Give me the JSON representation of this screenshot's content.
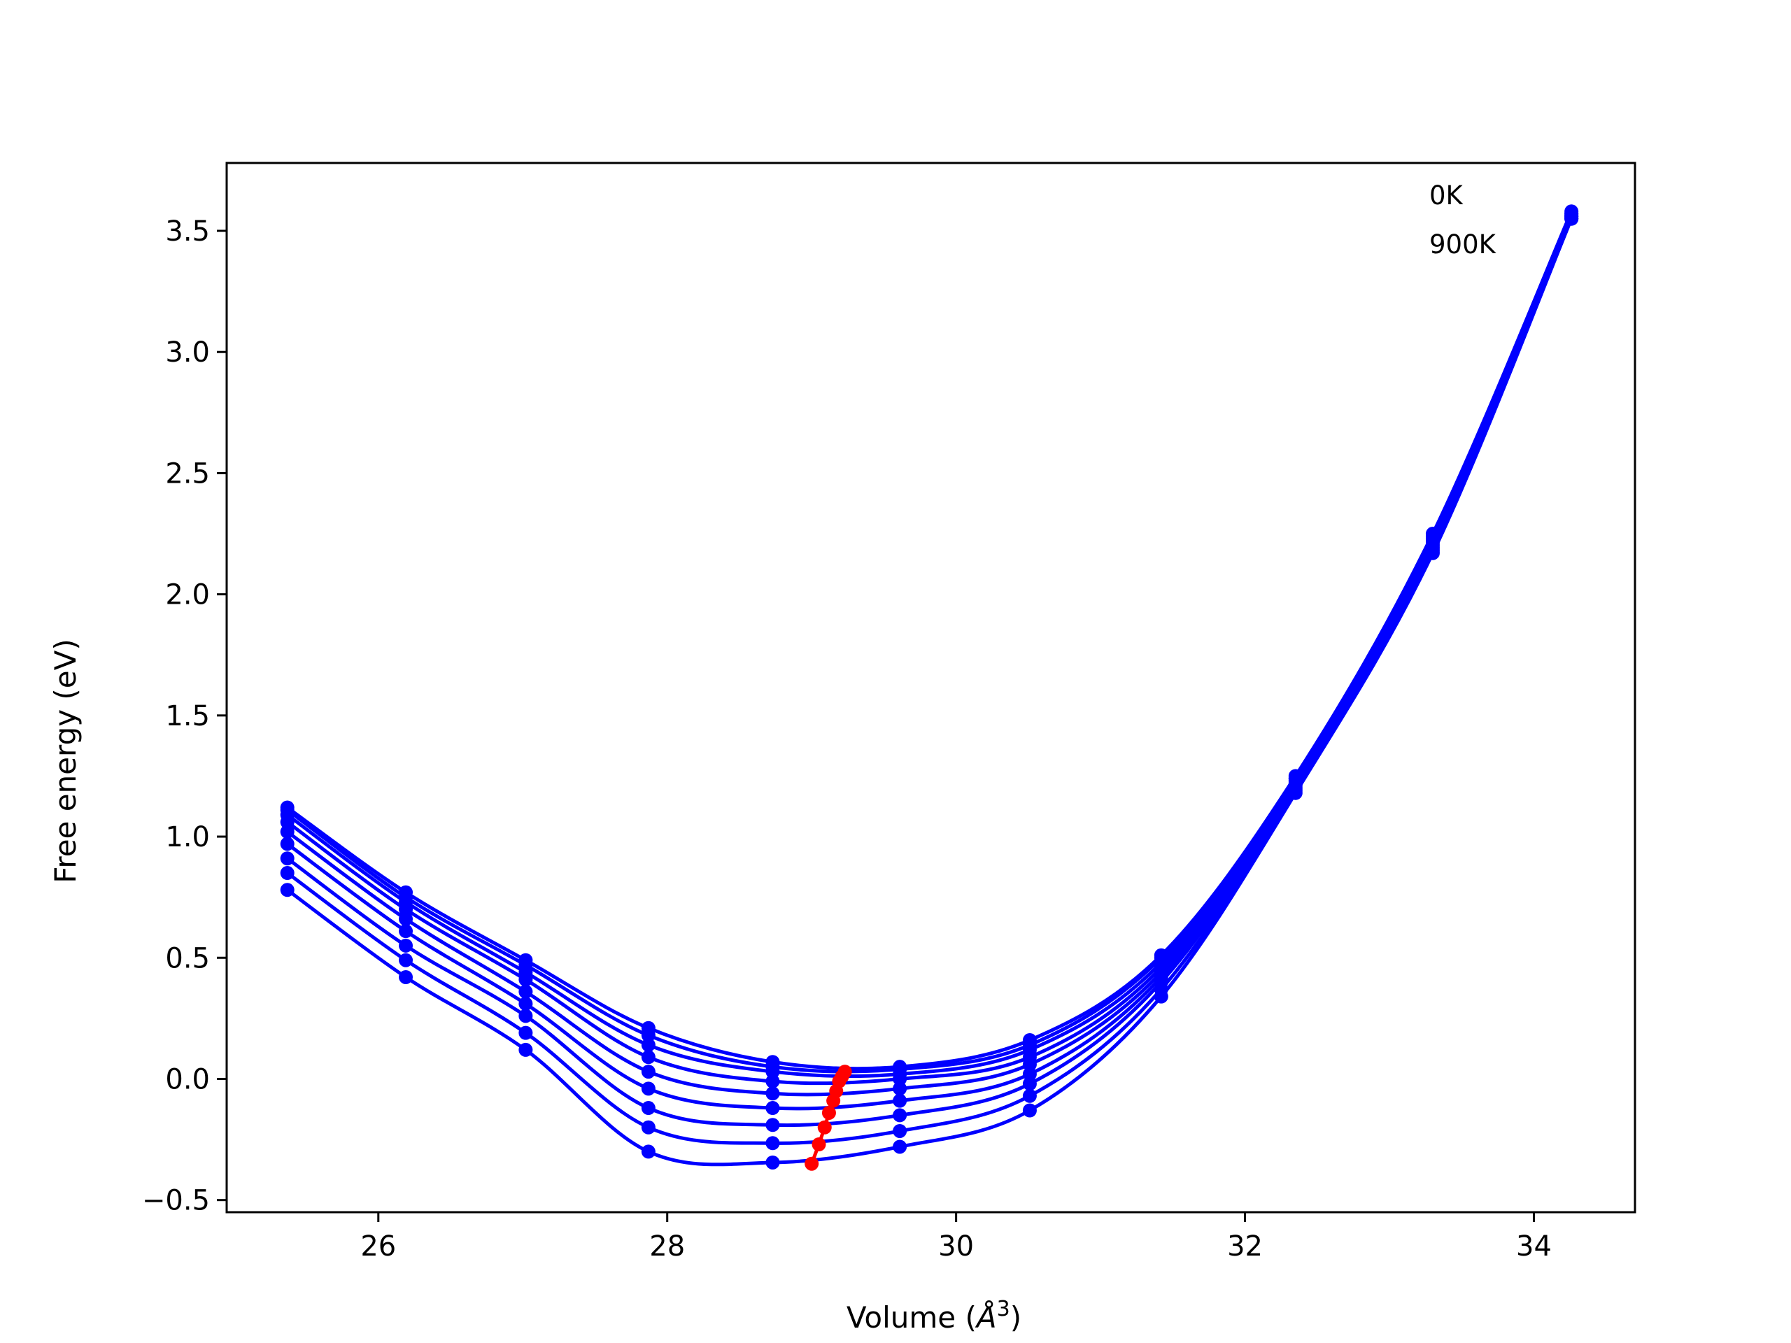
{
  "chart_data": {
    "type": "scatter",
    "xlabel": "Volume (",
    "xlabel_unit": "Å",
    "xlabel_exp": "3",
    "xlabel_close": ")",
    "ylabel": "Free energy (eV)",
    "xlim": [
      24.95,
      34.7
    ],
    "ylim": [
      -0.55,
      3.78
    ],
    "xticks": [
      26,
      28,
      30,
      32,
      34
    ],
    "yticks": [
      -0.5,
      0.0,
      0.5,
      1.0,
      1.5,
      2.0,
      2.5,
      3.0,
      3.5
    ],
    "xtick_labels": [
      "26",
      "28",
      "30",
      "32",
      "34"
    ],
    "ytick_labels": [
      "−0.5",
      "0.0",
      "0.5",
      "1.0",
      "1.5",
      "2.0",
      "2.5",
      "3.0",
      "3.5"
    ],
    "annotations": [
      "0K",
      "900K"
    ],
    "colors": {
      "curves": "#0000ff",
      "minima": "#ff0000",
      "axes": "#000000"
    },
    "x_points": [
      25.37,
      26.19,
      27.02,
      27.87,
      28.73,
      29.61,
      30.51,
      31.42,
      32.35,
      33.3,
      34.26
    ],
    "series": [
      {
        "values": [
          0.78,
          0.42,
          0.12,
          -0.3,
          -0.345,
          -0.28,
          -0.13,
          0.34,
          1.18,
          2.17,
          3.55
        ]
      },
      {
        "values": [
          0.85,
          0.49,
          0.19,
          -0.2,
          -0.265,
          -0.215,
          -0.07,
          0.37,
          1.19,
          2.18,
          3.55
        ]
      },
      {
        "values": [
          0.91,
          0.55,
          0.26,
          -0.12,
          -0.19,
          -0.15,
          -0.02,
          0.4,
          1.2,
          2.19,
          3.55
        ]
      },
      {
        "values": [
          0.97,
          0.61,
          0.31,
          -0.04,
          -0.12,
          -0.09,
          0.02,
          0.42,
          1.21,
          2.2,
          3.56
        ]
      },
      {
        "values": [
          1.02,
          0.66,
          0.36,
          0.03,
          -0.06,
          -0.04,
          0.06,
          0.44,
          1.22,
          2.21,
          3.56
        ]
      },
      {
        "values": [
          1.06,
          0.7,
          0.41,
          0.09,
          -0.01,
          0.0,
          0.09,
          0.46,
          1.23,
          2.22,
          3.56
        ]
      },
      {
        "values": [
          1.09,
          0.73,
          0.44,
          0.14,
          0.03,
          0.02,
          0.12,
          0.48,
          1.24,
          2.23,
          3.57
        ]
      },
      {
        "values": [
          1.11,
          0.75,
          0.47,
          0.18,
          0.05,
          0.04,
          0.14,
          0.5,
          1.24,
          2.24,
          3.57
        ]
      },
      {
        "values": [
          1.12,
          0.77,
          0.49,
          0.21,
          0.07,
          0.05,
          0.16,
          0.51,
          1.25,
          2.25,
          3.58
        ]
      }
    ],
    "minima": {
      "x": [
        29.0,
        29.05,
        29.09,
        29.12,
        29.15,
        29.17,
        29.19,
        29.21,
        29.23
      ],
      "y": [
        -0.35,
        -0.27,
        -0.2,
        -0.14,
        -0.09,
        -0.05,
        -0.01,
        0.01,
        0.03
      ]
    }
  }
}
